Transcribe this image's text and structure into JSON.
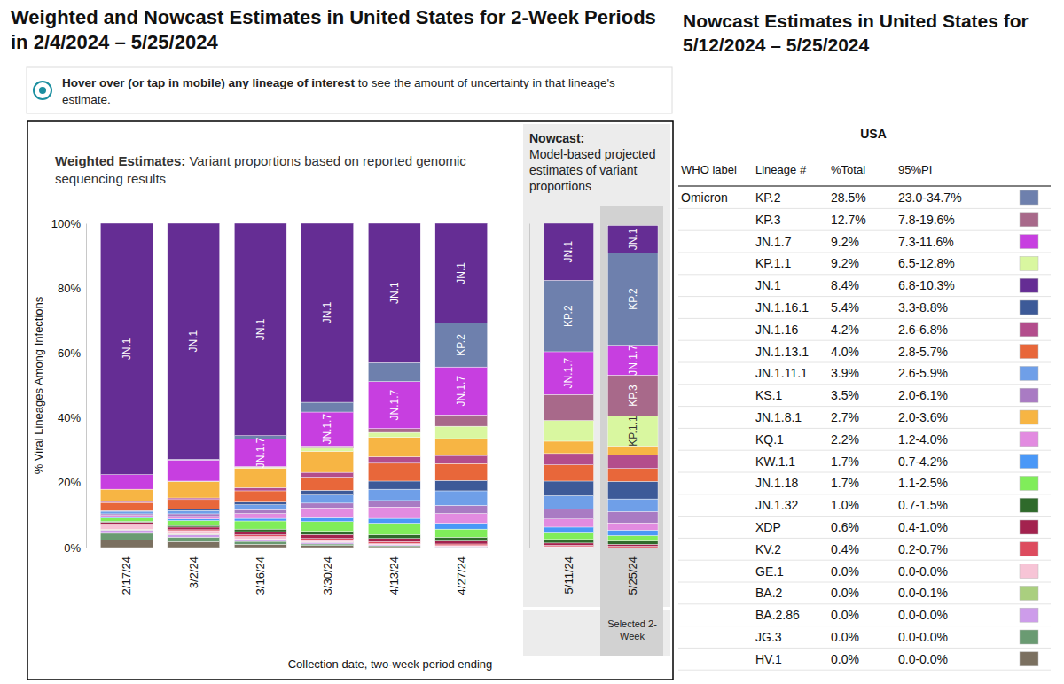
{
  "chart_data": [
    {
      "type": "bar",
      "stacked": true,
      "title": "Weighted and Nowcast Estimates in United States for 2-Week Periods in 2/4/2024 – 5/25/2024",
      "subtitle": {
        "bold": "Weighted Estimates:",
        "text": "Variant proportions based on reported genomic sequencing results"
      },
      "y_label": "% Viral Lineages Among Infections",
      "x_label": "Collection date, two-week period ending",
      "categories": [
        "2/17/24",
        "3/2/24",
        "3/16/24",
        "3/30/24",
        "4/13/24",
        "4/27/24"
      ],
      "ylim": [
        0,
        100
      ],
      "yticks": [
        {
          "value": 0,
          "label": "0%"
        },
        {
          "value": 20,
          "label": "20%"
        },
        {
          "value": 40,
          "label": "40%"
        },
        {
          "value": 60,
          "label": "60%"
        },
        {
          "value": 80,
          "label": "80%"
        },
        {
          "value": 100,
          "label": "100%"
        }
      ],
      "series": [
        {
          "name": "JN.1",
          "color": "#652d94",
          "values": [
            77.5,
            72.8,
            65.5,
            55.2,
            43.0,
            30.8
          ]
        },
        {
          "name": "KP.2",
          "color": "#6e80ad",
          "values": [
            0.0,
            0.2,
            1.0,
            3.0,
            5.8,
            13.5
          ]
        },
        {
          "name": "JN.1.7",
          "color": "#c73fe0",
          "values": [
            4.5,
            6.5,
            8.5,
            10.5,
            14.5,
            14.8
          ]
        },
        {
          "name": "KP.3",
          "color": "#a8698a",
          "values": [
            0.0,
            0.1,
            0.2,
            0.6,
            1.2,
            3.5
          ]
        },
        {
          "name": "KP.1.1",
          "color": "#d9f7a0",
          "values": [
            0.0,
            0.1,
            0.3,
            1.0,
            1.5,
            3.8
          ]
        },
        {
          "name": "JN.1.8.1",
          "color": "#f7b544",
          "values": [
            3.8,
            5.0,
            6.0,
            6.5,
            6.0,
            5.2
          ]
        },
        {
          "name": "JN.1.16",
          "color": "#b34d8c",
          "values": [
            0.3,
            0.5,
            1.0,
            1.5,
            2.0,
            2.5
          ]
        },
        {
          "name": "JN.1.13.1",
          "color": "#e8673a",
          "values": [
            2.5,
            3.0,
            3.5,
            4.0,
            5.5,
            5.2
          ]
        },
        {
          "name": "JN.1.16.1",
          "color": "#3d5a98",
          "values": [
            0.2,
            0.4,
            0.8,
            1.5,
            2.5,
            3.2
          ]
        },
        {
          "name": "JN.1.11.1",
          "color": "#6f9fe8",
          "values": [
            0.8,
            1.0,
            1.5,
            2.5,
            3.5,
            4.5
          ]
        },
        {
          "name": "KS.1",
          "color": "#a97bc3",
          "values": [
            0.5,
            0.8,
            1.2,
            1.5,
            2.0,
            2.5
          ]
        },
        {
          "name": "KQ.1",
          "color": "#e28be0",
          "values": [
            0.5,
            0.8,
            1.5,
            3.0,
            3.5,
            3.0
          ]
        },
        {
          "name": "KW.1.1",
          "color": "#4a98f7",
          "values": [
            0.3,
            0.5,
            0.8,
            1.2,
            1.5,
            1.8
          ]
        },
        {
          "name": "JN.1.18",
          "color": "#80ed5a",
          "values": [
            1.0,
            1.5,
            2.5,
            3.0,
            3.5,
            2.5
          ]
        },
        {
          "name": "JN.1.32",
          "color": "#2f6a2b",
          "values": [
            0.3,
            0.5,
            0.8,
            1.0,
            1.2,
            1.2
          ]
        },
        {
          "name": "XDP",
          "color": "#a3224e",
          "values": [
            0.5,
            0.8,
            1.0,
            1.2,
            1.0,
            0.9
          ]
        },
        {
          "name": "KV.2",
          "color": "#dd4b5e",
          "values": [
            0.2,
            0.3,
            0.5,
            0.6,
            0.6,
            0.5
          ]
        },
        {
          "name": "GE.1",
          "color": "#f7c4d6",
          "values": [
            1.5,
            1.0,
            0.8,
            0.5,
            0.3,
            0.2
          ]
        },
        {
          "name": "BA.2",
          "color": "#aacf7f",
          "values": [
            0.2,
            0.2,
            0.1,
            0.1,
            0.0,
            0.0
          ]
        },
        {
          "name": "BA.2.86",
          "color": "#cd9cea",
          "values": [
            1.0,
            0.8,
            0.6,
            0.5,
            0.3,
            0.2
          ]
        },
        {
          "name": "JG.3",
          "color": "#6a9b72",
          "values": [
            2.0,
            1.4,
            0.9,
            0.5,
            0.3,
            0.1
          ]
        },
        {
          "name": "HV.1",
          "color": "#7b7060",
          "values": [
            2.4,
            1.8,
            1.0,
            0.6,
            0.3,
            0.1
          ]
        }
      ]
    },
    {
      "type": "bar",
      "stacked": true,
      "tick_labels": "x",
      "annotations": [
        {
          "bold": "Nowcast:",
          "text": "Model-based projected estimates of variant proportions"
        },
        {
          "text": "Selected 2-Week"
        }
      ],
      "categories": [
        "5/11/24",
        "5/25/24"
      ],
      "ylim": [
        0,
        100
      ],
      "series": [
        {
          "name": "JN.1",
          "color": "#652d94",
          "values": [
            17.6,
            8.4
          ]
        },
        {
          "name": "KP.2",
          "color": "#6e80ad",
          "values": [
            22.0,
            28.5
          ]
        },
        {
          "name": "JN.1.7",
          "color": "#c73fe0",
          "values": [
            13.2,
            9.2
          ]
        },
        {
          "name": "KP.3",
          "color": "#a8698a",
          "values": [
            8.0,
            12.7
          ]
        },
        {
          "name": "KP.1.1",
          "color": "#d9f7a0",
          "values": [
            6.4,
            9.2
          ]
        },
        {
          "name": "JN.1.8.1",
          "color": "#f7b544",
          "values": [
            3.8,
            2.7
          ]
        },
        {
          "name": "JN.1.16",
          "color": "#b34d8c",
          "values": [
            3.5,
            4.2
          ]
        },
        {
          "name": "JN.1.13.1",
          "color": "#e8673a",
          "values": [
            5.0,
            4.0
          ]
        },
        {
          "name": "JN.1.16.1",
          "color": "#3d5a98",
          "values": [
            4.5,
            5.4
          ]
        },
        {
          "name": "JN.1.11.1",
          "color": "#6f9fe8",
          "values": [
            4.2,
            3.9
          ]
        },
        {
          "name": "KS.1",
          "color": "#a97bc3",
          "values": [
            3.0,
            3.5
          ]
        },
        {
          "name": "KQ.1",
          "color": "#e28be0",
          "values": [
            2.5,
            2.2
          ]
        },
        {
          "name": "KW.1.1",
          "color": "#4a98f7",
          "values": [
            1.8,
            1.7
          ]
        },
        {
          "name": "JN.1.18",
          "color": "#80ed5a",
          "values": [
            2.0,
            1.7
          ]
        },
        {
          "name": "JN.1.32",
          "color": "#2f6a2b",
          "values": [
            1.1,
            1.0
          ]
        },
        {
          "name": "XDP",
          "color": "#a3224e",
          "values": [
            0.7,
            0.6
          ]
        },
        {
          "name": "KV.2",
          "color": "#dd4b5e",
          "values": [
            0.4,
            0.4
          ]
        },
        {
          "name": "GE.1",
          "color": "#f7c4d6",
          "values": [
            0.1,
            0.0
          ]
        },
        {
          "name": "BA.2",
          "color": "#aacf7f",
          "values": [
            0.0,
            0.0
          ]
        },
        {
          "name": "BA.2.86",
          "color": "#cd9cea",
          "values": [
            0.1,
            0.0
          ]
        },
        {
          "name": "JG.3",
          "color": "#6a9b72",
          "values": [
            0.1,
            0.0
          ]
        },
        {
          "name": "HV.1",
          "color": "#7b7060",
          "values": [
            0.0,
            0.0
          ]
        }
      ]
    }
  ],
  "header": {
    "note": {
      "bold": "Hover over (or tap in mobile) any lineage of interest",
      "text": "to see the amount of uncertainty in that lineage's estimate."
    }
  },
  "table": {
    "title": "Nowcast Estimates in United States for 5/12/2024 – 5/25/2024",
    "caption": "USA",
    "columns": [
      "WHO label",
      "Lineage #",
      "%Total",
      "95%PI"
    ],
    "rows": [
      {
        "who": "Omicron",
        "lineage": "KP.2",
        "total": "28.5%",
        "pi": "23.0-34.7%",
        "color": "#6e80ad"
      },
      {
        "lineage": "KP.3",
        "total": "12.7%",
        "pi": "7.8-19.6%",
        "color": "#a8698a"
      },
      {
        "lineage": "JN.1.7",
        "total": "9.2%",
        "pi": "7.3-11.6%",
        "color": "#c73fe0"
      },
      {
        "lineage": "KP.1.1",
        "total": "9.2%",
        "pi": "6.5-12.8%",
        "color": "#d9f7a0"
      },
      {
        "lineage": "JN.1",
        "total": "8.4%",
        "pi": "6.8-10.3%",
        "color": "#652d94"
      },
      {
        "lineage": "JN.1.16.1",
        "total": "5.4%",
        "pi": "3.3-8.8%",
        "color": "#3d5a98"
      },
      {
        "lineage": "JN.1.16",
        "total": "4.2%",
        "pi": "2.6-6.8%",
        "color": "#b34d8c"
      },
      {
        "lineage": "JN.1.13.1",
        "total": "4.0%",
        "pi": "2.8-5.7%",
        "color": "#e8673a"
      },
      {
        "lineage": "JN.1.11.1",
        "total": "3.9%",
        "pi": "2.6-5.9%",
        "color": "#6f9fe8"
      },
      {
        "lineage": "KS.1",
        "total": "3.5%",
        "pi": "2.0-6.1%",
        "color": "#a97bc3"
      },
      {
        "lineage": "JN.1.8.1",
        "total": "2.7%",
        "pi": "2.0-3.6%",
        "color": "#f7b544"
      },
      {
        "lineage": "KQ.1",
        "total": "2.2%",
        "pi": "1.2-4.0%",
        "color": "#e28be0"
      },
      {
        "lineage": "KW.1.1",
        "total": "1.7%",
        "pi": "0.7-4.2%",
        "color": "#4a98f7"
      },
      {
        "lineage": "JN.1.18",
        "total": "1.7%",
        "pi": "1.1-2.5%",
        "color": "#80ed5a"
      },
      {
        "lineage": "JN.1.32",
        "total": "1.0%",
        "pi": "0.7-1.5%",
        "color": "#2f6a2b"
      },
      {
        "lineage": "XDP",
        "total": "0.6%",
        "pi": "0.4-1.0%",
        "color": "#a3224e"
      },
      {
        "lineage": "KV.2",
        "total": "0.4%",
        "pi": "0.2-0.7%",
        "color": "#dd4b5e"
      },
      {
        "lineage": "GE.1",
        "total": "0.0%",
        "pi": "0.0-0.0%",
        "color": "#f7c4d6"
      },
      {
        "lineage": "BA.2",
        "total": "0.0%",
        "pi": "0.0-0.1%",
        "color": "#aacf7f"
      },
      {
        "lineage": "BA.2.86",
        "total": "0.0%",
        "pi": "0.0-0.0%",
        "color": "#cd9cea"
      },
      {
        "lineage": "JG.3",
        "total": "0.0%",
        "pi": "0.0-0.0%",
        "color": "#6a9b72"
      },
      {
        "lineage": "HV.1",
        "total": "0.0%",
        "pi": "0.0-0.0%",
        "color": "#7b7060"
      }
    ]
  }
}
